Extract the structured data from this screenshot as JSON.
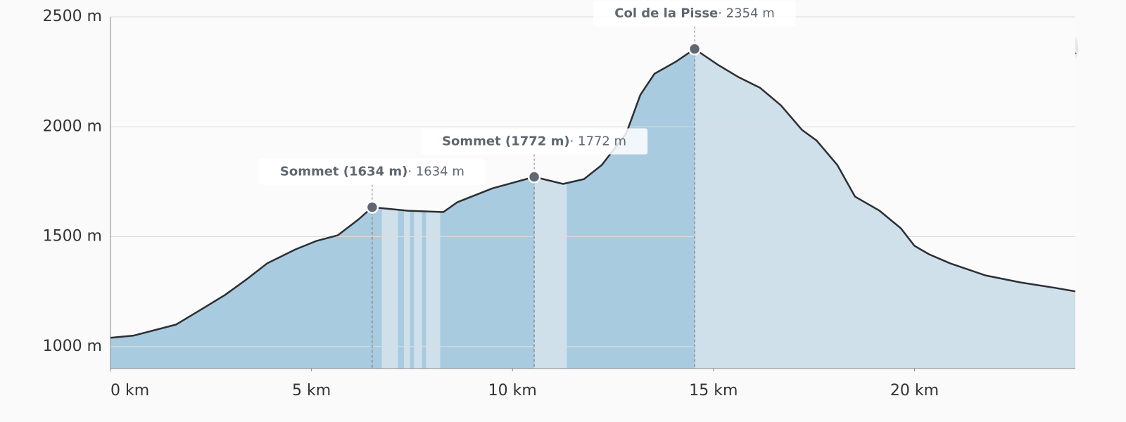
{
  "chart_data": {
    "type": "area",
    "x": [
      0,
      0.58,
      1.63,
      2.33,
      2.85,
      3.38,
      3.9,
      4.6,
      5.13,
      5.65,
      6.18,
      6.51,
      7.4,
      8.28,
      8.63,
      9.5,
      10.54,
      11.26,
      11.78,
      12.22,
      12.83,
      13.18,
      13.53,
      14.06,
      14.53,
      15.1,
      15.63,
      16.16,
      16.68,
      17.2,
      17.56,
      18.08,
      18.52,
      19.13,
      19.66,
      20.0,
      20.36,
      20.88,
      21.76,
      22.63,
      23.5,
      24.0
    ],
    "values": [
      1040,
      1050,
      1100,
      1177,
      1235,
      1305,
      1379,
      1442,
      1481,
      1506,
      1580,
      1634,
      1618,
      1612,
      1657,
      1720,
      1772,
      1740,
      1762,
      1826,
      1970,
      2145,
      2241,
      2296,
      2354,
      2283,
      2225,
      2177,
      2097,
      1986,
      1938,
      1826,
      1682,
      1618,
      1538,
      1458,
      1420,
      1379,
      1324,
      1292,
      1267,
      1251
    ],
    "color": "#a9cbe0",
    "light_color": "#cfe0eb",
    "line_color": "#2b2f33",
    "light_segments": [
      [
        6.75,
        7.15
      ],
      [
        7.3,
        7.45
      ],
      [
        7.55,
        7.75
      ],
      [
        7.85,
        8.2
      ],
      [
        10.54,
        11.35
      ],
      [
        14.53,
        24.0
      ]
    ],
    "xlim": [
      0,
      24.0
    ],
    "ylim": [
      900,
      2500
    ],
    "xticks": [
      {
        "value": 0,
        "label": "0 km"
      },
      {
        "value": 5,
        "label": "5 km"
      },
      {
        "value": 10,
        "label": "10 km"
      },
      {
        "value": 15,
        "label": "15 km"
      },
      {
        "value": 20,
        "label": "20 km"
      }
    ],
    "yticks": [
      {
        "value": 1000,
        "label": "1000 m"
      },
      {
        "value": 1500,
        "label": "1500 m"
      },
      {
        "value": 2000,
        "label": "2000 m"
      },
      {
        "value": 2500,
        "label": "2500 m"
      }
    ],
    "grid": true,
    "annotations": [
      {
        "x": 6.51,
        "value": 1634,
        "label": "Sommet (1634 m)",
        "value_label": "· 1634 m"
      },
      {
        "x": 10.54,
        "value": 1772,
        "label": "Sommet (1772 m)",
        "value_label": "· 1772 m"
      },
      {
        "x": 14.53,
        "value": 2354,
        "label": "Col de la Pisse",
        "value_label": "· 2354 m"
      }
    ]
  }
}
